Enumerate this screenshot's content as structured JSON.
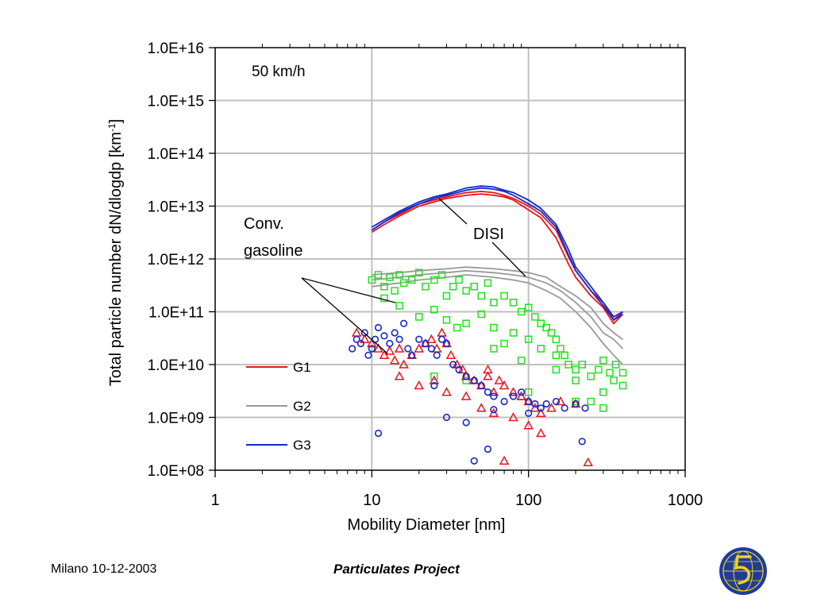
{
  "footer": {
    "left": "Milano 10-12-2003",
    "center": "Particulates Project"
  },
  "colors": {
    "G1": "#e8141c",
    "G2": "#999999",
    "G3": "#1428c8",
    "green": "#22e01e",
    "logo_bg": "#1f3c9c",
    "logo_fg": "#f2d21a"
  },
  "icons": {
    "logo": "circular-globe-logo-icon"
  },
  "chart_data": {
    "type": "line",
    "xlabel": "Mobility Diameter [nm]",
    "ylabel": "Total particle number dN/dlogdp [km",
    "ylabel_sup": "-1",
    "ylabel_end": "]",
    "x_scale": "log",
    "y_scale": "log",
    "xlim": [
      1,
      1000
    ],
    "ylim": [
      100000000.0,
      1e+16
    ],
    "x_ticks": [
      "1",
      "10",
      "100",
      "1000"
    ],
    "y_ticks": [
      "1.0E+08",
      "1.0E+09",
      "1.0E+10",
      "1.0E+11",
      "1.0E+12",
      "1.0E+13",
      "1.0E+14",
      "1.0E+15",
      "1.0E+16"
    ],
    "grid": true,
    "annotations": {
      "speed": "50 km/h",
      "conv_line1": "Conv.",
      "conv_line2": "gasoline",
      "disi": "DISI"
    },
    "legend": {
      "placement": "lower-left",
      "entries": [
        "G1",
        "G2",
        "G3"
      ]
    },
    "series": [
      {
        "name": "G1",
        "kind": "line",
        "color": "#e8141c",
        "x": [
          10,
          12,
          15,
          20,
          25,
          30,
          40,
          50,
          60,
          70,
          80,
          100,
          120,
          150,
          180,
          200,
          250,
          300,
          350,
          400
        ],
        "y": [
          3500000000000.0,
          5000000000000.0,
          7000000000000.0,
          11000000000000.0,
          13000000000000.0,
          15000000000000.0,
          18000000000000.0,
          19000000000000.0,
          18000000000000.0,
          16000000000000.0,
          14000000000000.0,
          10000000000000.0,
          7000000000000.0,
          3500000000000.0,
          1100000000000.0,
          600000000000.0,
          250000000000.0,
          150000000000.0,
          70000000000.0,
          100000000000.0
        ]
      },
      {
        "name": "G1",
        "kind": "line",
        "color": "#e8141c",
        "x": [
          10,
          12,
          15,
          20,
          25,
          30,
          40,
          50,
          60,
          70,
          80,
          100,
          120,
          150,
          180,
          200,
          250,
          300,
          350,
          400
        ],
        "y": [
          3200000000000.0,
          4500000000000.0,
          6500000000000.0,
          10000000000000.0,
          12000000000000.0,
          14000000000000.0,
          16000000000000.0,
          17000000000000.0,
          16000000000000.0,
          15000000000000.0,
          13000000000000.0,
          8500000000000.0,
          6000000000000.0,
          2500000000000.0,
          800000000000.0,
          450000000000.0,
          200000000000.0,
          120000000000.0,
          60000000000.0,
          90000000000.0
        ]
      },
      {
        "name": "G2",
        "kind": "line",
        "color": "#999999",
        "x": [
          10,
          15,
          20,
          30,
          40,
          60,
          80,
          100,
          130,
          160,
          200,
          250,
          300,
          350,
          400
        ],
        "y": [
          400000000000.0,
          450000000000.0,
          500000000000.0,
          550000000000.0,
          600000000000.0,
          550000000000.0,
          500000000000.0,
          450000000000.0,
          350000000000.0,
          250000000000.0,
          150000000000.0,
          80000000000.0,
          40000000000.0,
          30000000000.0,
          20000000000.0
        ]
      },
      {
        "name": "G2",
        "kind": "line",
        "color": "#999999",
        "x": [
          10,
          15,
          20,
          30,
          40,
          60,
          80,
          100,
          130,
          160,
          200,
          250,
          300,
          350,
          400
        ],
        "y": [
          300000000000.0,
          350000000000.0,
          400000000000.0,
          450000000000.0,
          500000000000.0,
          450000000000.0,
          400000000000.0,
          350000000000.0,
          250000000000.0,
          180000000000.0,
          100000000000.0,
          50000000000.0,
          25000000000.0,
          15000000000.0,
          10000000000.0
        ]
      },
      {
        "name": "G2",
        "kind": "line",
        "color": "#999999",
        "x": [
          10,
          15,
          20,
          30,
          40,
          60,
          80,
          100,
          130,
          160,
          200,
          250,
          300,
          350,
          400
        ],
        "y": [
          500000000000.0,
          550000000000.0,
          600000000000.0,
          650000000000.0,
          700000000000.0,
          650000000000.0,
          600000000000.0,
          550000000000.0,
          450000000000.0,
          300000000000.0,
          200000000000.0,
          120000000000.0,
          60000000000.0,
          40000000000.0,
          30000000000.0
        ]
      },
      {
        "name": "G3",
        "kind": "line",
        "color": "#1428c8",
        "x": [
          10,
          12,
          15,
          20,
          25,
          30,
          40,
          50,
          60,
          70,
          80,
          100,
          120,
          150,
          180,
          200,
          250,
          300,
          350,
          400
        ],
        "y": [
          4000000000000.0,
          5500000000000.0,
          8000000000000.0,
          12000000000000.0,
          15000000000000.0,
          17000000000000.0,
          22000000000000.0,
          24000000000000.0,
          23000000000000.0,
          20000000000000.0,
          18000000000000.0,
          13000000000000.0,
          9000000000000.0,
          4500000000000.0,
          1500000000000.0,
          700000000000.0,
          300000000000.0,
          150000000000.0,
          80000000000.0,
          100000000000.0
        ]
      },
      {
        "name": "G3",
        "kind": "line",
        "color": "#1428c8",
        "x": [
          10,
          12,
          15,
          20,
          25,
          30,
          40,
          50,
          60,
          70,
          80,
          100,
          120,
          150,
          180,
          200,
          250,
          300,
          350,
          400
        ],
        "y": [
          3500000000000.0,
          5000000000000.0,
          7500000000000.0,
          11000000000000.0,
          14000000000000.0,
          16000000000000.0,
          20000000000000.0,
          22000000000000.0,
          21000000000000.0,
          19000000000000.0,
          16000000000000.0,
          11000000000000.0,
          8000000000000.0,
          4000000000000.0,
          1200000000000.0,
          600000000000.0,
          250000000000.0,
          130000000000.0,
          70000000000.0,
          90000000000.0
        ]
      },
      {
        "name": "",
        "kind": "square",
        "color": "#22e01e",
        "x": [
          10,
          11,
          12,
          13,
          14,
          15,
          16,
          18,
          20,
          22,
          25,
          28,
          30,
          33,
          36,
          40,
          45,
          50,
          55,
          60,
          70,
          80,
          90,
          100,
          110,
          120,
          130,
          140,
          150,
          160,
          170,
          180,
          200,
          220,
          250,
          280,
          300,
          330,
          360,
          400,
          12,
          15,
          20,
          25,
          30,
          40,
          50,
          60,
          80,
          100,
          120,
          150,
          200,
          250,
          300,
          350,
          400,
          25,
          40,
          60,
          100,
          150,
          200,
          300,
          35,
          70,
          90
        ],
        "y": [
          400000000000.0,
          500000000000.0,
          300000000000.0,
          450000000000.0,
          250000000000.0,
          500000000000.0,
          350000000000.0,
          400000000000.0,
          550000000000.0,
          300000000000.0,
          400000000000.0,
          500000000000.0,
          200000000000.0,
          300000000000.0,
          400000000000.0,
          250000000000.0,
          300000000000.0,
          200000000000.0,
          350000000000.0,
          150000000000.0,
          200000000000.0,
          150000000000.0,
          100000000000.0,
          120000000000.0,
          80000000000.0,
          60000000000.0,
          50000000000.0,
          40000000000.0,
          30000000000.0,
          20000000000.0,
          15000000000.0,
          10000000000.0,
          8000000000.0,
          10000000000.0,
          6000000000.0,
          8000000000.0,
          12000000000.0,
          7000000000.0,
          10000000000.0,
          7000000000.0,
          180000000000.0,
          130000000000.0,
          80000000000.0,
          110000000000.0,
          70000000000.0,
          60000000000.0,
          90000000000.0,
          50000000000.0,
          40000000000.0,
          30000000000.0,
          20000000000.0,
          15000000000.0,
          5000000000.0,
          2000000000.0,
          3000000000.0,
          5000000000.0,
          4000000000.0,
          6000000000.0,
          5000000000.0,
          20000000000.0,
          3000000000.0,
          8000000000.0,
          2000000000.0,
          1500000000.0,
          50000000000.0,
          25000000000.0,
          12000000000.0
        ]
      },
      {
        "name": "",
        "kind": "triangle",
        "color": "#e8141c",
        "x": [
          8,
          9,
          10,
          11,
          12,
          13,
          14,
          15,
          16,
          18,
          20,
          22,
          24,
          26,
          28,
          30,
          32,
          35,
          38,
          40,
          45,
          50,
          55,
          60,
          65,
          70,
          80,
          90,
          100,
          110,
          120,
          140,
          160,
          200,
          240,
          15,
          20,
          25,
          30,
          40,
          50,
          60,
          80,
          100,
          120,
          70,
          90,
          55
        ],
        "y": [
          40000000000.0,
          30000000000.0,
          25000000000.0,
          20000000000.0,
          15000000000.0,
          18000000000.0,
          12000000000.0,
          20000000000.0,
          10000000000.0,
          15000000000.0,
          20000000000.0,
          25000000000.0,
          30000000000.0,
          20000000000.0,
          40000000000.0,
          25000000000.0,
          15000000000.0,
          10000000000.0,
          8000000000.0,
          6000000000.0,
          5000000000.0,
          4000000000.0,
          6000000000.0,
          3000000000.0,
          5000000000.0,
          4000000000.0,
          3000000000.0,
          2500000000.0,
          2000000000.0,
          1500000000.0,
          1200000000.0,
          1500000000.0,
          2000000000.0,
          1800000000.0,
          140000000.0,
          6000000000.0,
          4000000000.0,
          5000000000.0,
          3000000000.0,
          2500000000.0,
          1500000000.0,
          1200000000.0,
          1000000000.0,
          700000000.0,
          500000000.0,
          150000000.0,
          2500000000.0,
          8000000000.0
        ]
      },
      {
        "name": "",
        "kind": "circle",
        "color": "#1428c8",
        "x": [
          7.5,
          8,
          8.5,
          9,
          9.5,
          10,
          10.5,
          11,
          12,
          13,
          14,
          15,
          16,
          17,
          18,
          20,
          22,
          24,
          26,
          28,
          30,
          33,
          36,
          40,
          45,
          50,
          55,
          60,
          70,
          80,
          90,
          100,
          110,
          120,
          130,
          150,
          170,
          200,
          230,
          11,
          25,
          30,
          40,
          55,
          60,
          100,
          220,
          45
        ],
        "y": [
          20000000000.0,
          30000000000.0,
          25000000000.0,
          40000000000.0,
          15000000000.0,
          20000000000.0,
          30000000000.0,
          50000000000.0,
          35000000000.0,
          25000000000.0,
          40000000000.0,
          30000000000.0,
          60000000000.0,
          20000000000.0,
          15000000000.0,
          30000000000.0,
          25000000000.0,
          20000000000.0,
          15000000000.0,
          30000000000.0,
          25000000000.0,
          10000000000.0,
          8000000000.0,
          6000000000.0,
          5000000000.0,
          4000000000.0,
          3000000000.0,
          2500000000.0,
          2000000000.0,
          2500000000.0,
          3000000000.0,
          2000000000.0,
          1800000000.0,
          1500000000.0,
          1800000000.0,
          2000000000.0,
          1500000000.0,
          1800000000.0,
          1500000000.0,
          500000000.0,
          4000000000.0,
          1000000000.0,
          800000000.0,
          250000000.0,
          1400000000.0,
          1200000000.0,
          350000000.0,
          150000000.0
        ]
      }
    ]
  }
}
